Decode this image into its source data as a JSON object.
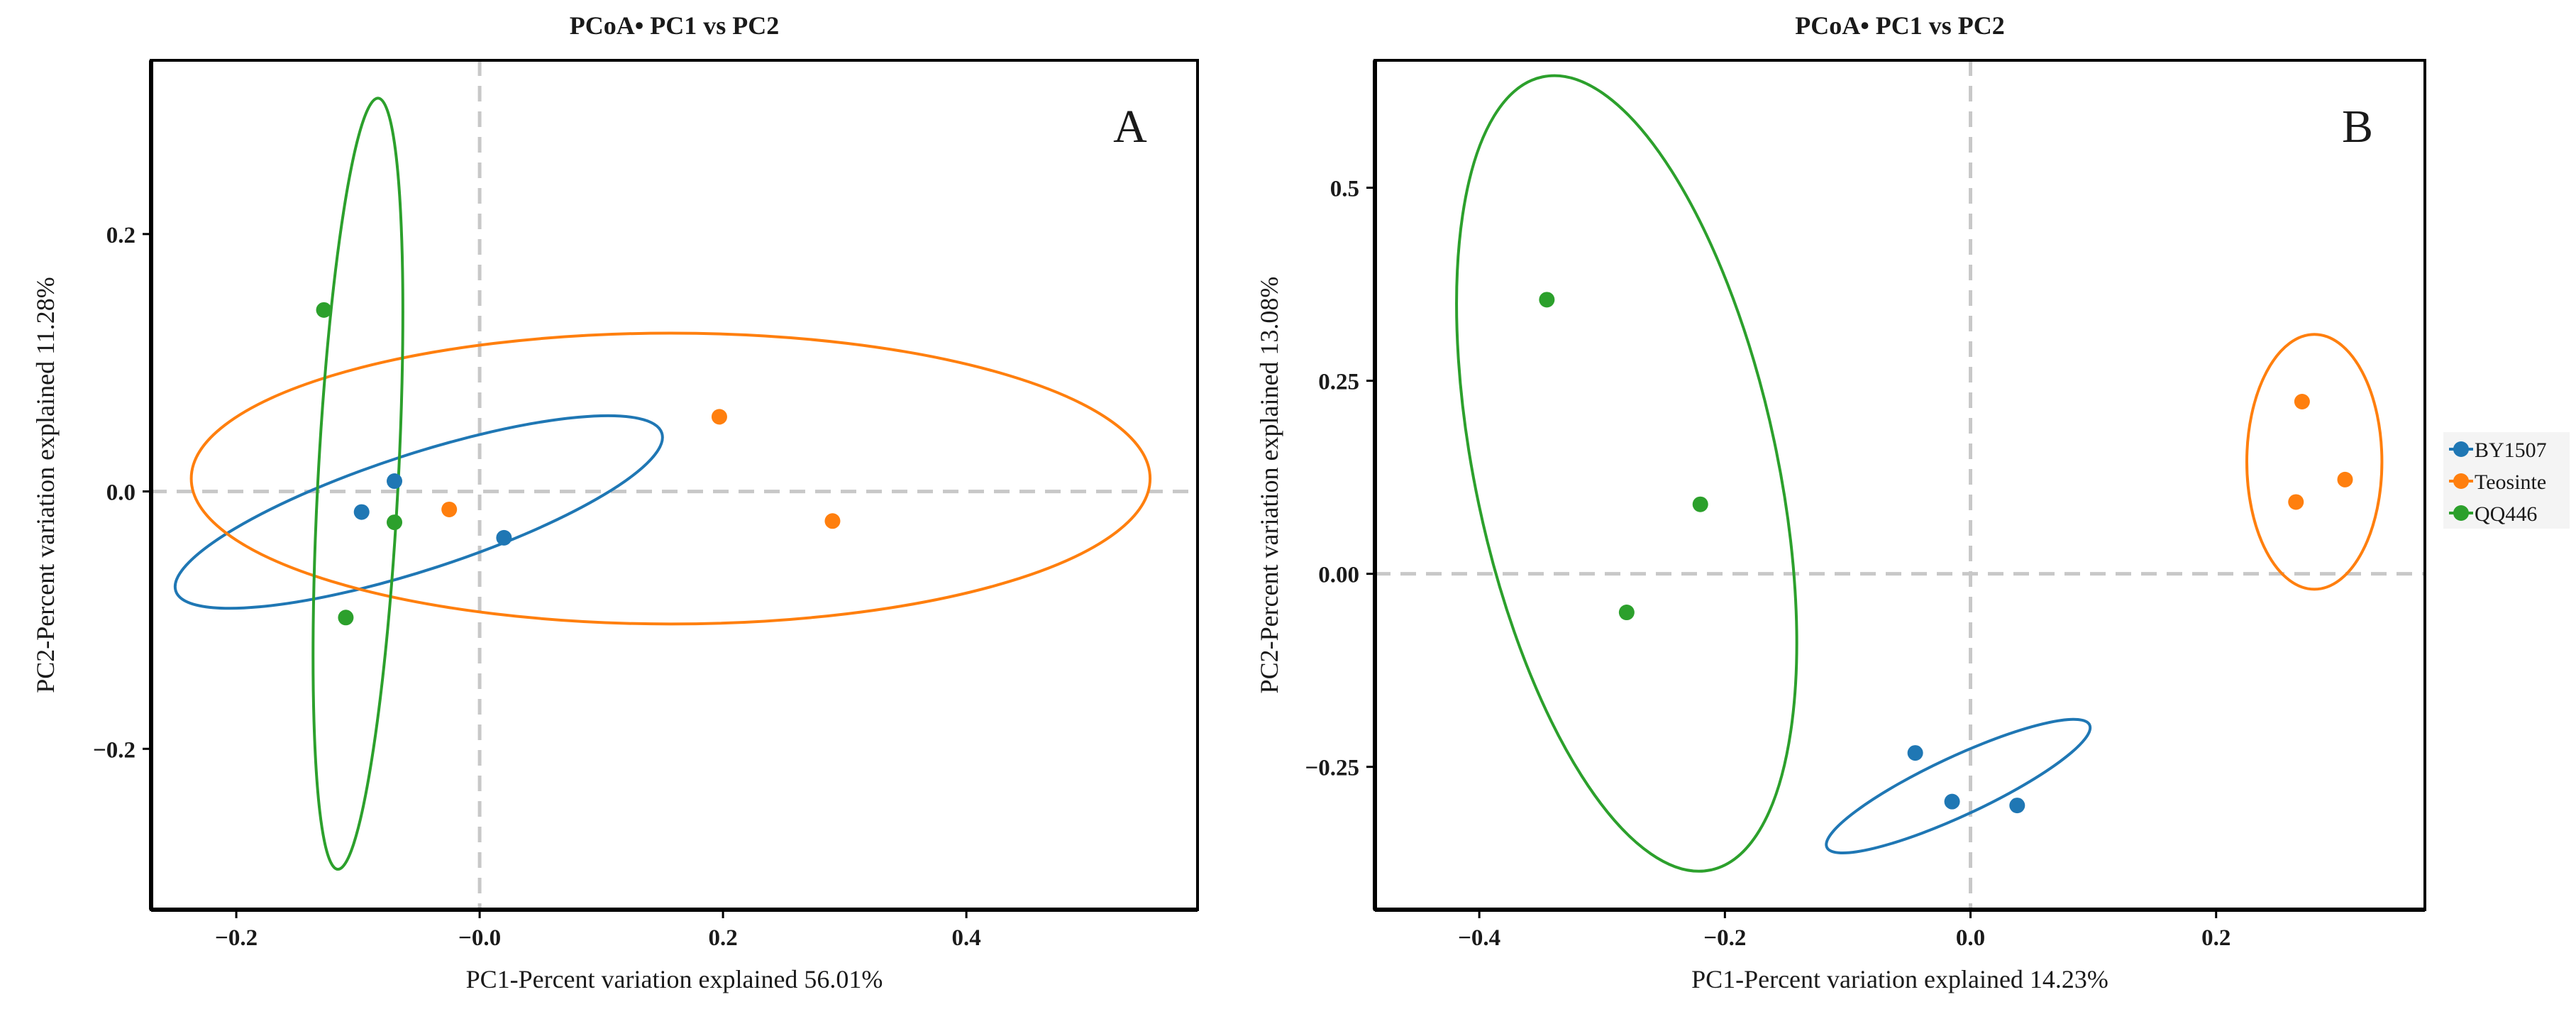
{
  "chart_data": [
    {
      "type": "scatter",
      "title": "PCoA• PC1 vs PC2",
      "panel_label": "A",
      "xlabel": "PC1-Percent variation explained 56.01%",
      "ylabel": "PC2-Percent variation explained 11.28%",
      "xlim": [
        -0.27,
        0.59
      ],
      "ylim": [
        -0.325,
        0.335
      ],
      "xticks": [
        -0.2,
        -0.0,
        0.2,
        0.4
      ],
      "xtick_labels": [
        "−0.2",
        "−0.0",
        "0.2",
        "0.4"
      ],
      "yticks": [
        -0.2,
        0.0,
        0.2
      ],
      "ytick_labels": [
        "−0.2",
        "0.0",
        "0.2"
      ],
      "reference_lines": {
        "x": 0.0,
        "y": 0.0
      },
      "series": [
        {
          "name": "BY1507",
          "color": "#1f77b4",
          "points": [
            [
              -0.07,
              0.008
            ],
            [
              -0.097,
              -0.016
            ],
            [
              0.02,
              -0.036
            ]
          ],
          "ellipse": {
            "cx": -0.05,
            "cy": -0.016,
            "rx": 0.21,
            "ry": 0.045,
            "angle": -18
          }
        },
        {
          "name": "Teosinte",
          "color": "#ff7f0e",
          "points": [
            [
              0.197,
              0.058
            ],
            [
              0.29,
              -0.023
            ],
            [
              -0.025,
              -0.014
            ]
          ],
          "ellipse": {
            "cx": 0.157,
            "cy": 0.01,
            "rx": 0.394,
            "ry": 0.113,
            "angle": 0
          }
        },
        {
          "name": "QQ446",
          "color": "#2ca02c",
          "points": [
            [
              -0.128,
              0.141
            ],
            [
              -0.07,
              -0.024
            ],
            [
              -0.11,
              -0.098
            ]
          ],
          "ellipse": {
            "cx": -0.1,
            "cy": 0.006,
            "rx": 0.033,
            "ry": 0.3,
            "angle": 3
          }
        }
      ]
    },
    {
      "type": "scatter",
      "title": "PCoA• PC1 vs PC2",
      "panel_label": "B",
      "xlabel": "PC1-Percent variation explained 14.23%",
      "ylabel": "PC2-Percent variation explained 13.08%",
      "xlim": [
        -0.485,
        0.37
      ],
      "ylim": [
        -0.435,
        0.665
      ],
      "xticks": [
        -0.4,
        -0.2,
        0.0,
        0.2
      ],
      "xtick_labels": [
        "−0.4",
        "−0.2",
        "0.0",
        "0.2"
      ],
      "yticks": [
        -0.25,
        0.0,
        0.25,
        0.5
      ],
      "ytick_labels": [
        "−0.25",
        "0.00",
        "0.25",
        "0.5"
      ],
      "reference_lines": {
        "x": 0.0,
        "y": 0.0
      },
      "series": [
        {
          "name": "BY1507",
          "color": "#1f77b4",
          "points": [
            [
              -0.045,
              -0.232
            ],
            [
              -0.015,
              -0.295
            ],
            [
              0.038,
              -0.3
            ]
          ],
          "ellipse": {
            "cx": -0.01,
            "cy": -0.275,
            "rx": 0.118,
            "ry": 0.038,
            "angle": -25
          }
        },
        {
          "name": "Teosinte",
          "color": "#ff7f0e",
          "points": [
            [
              0.27,
              0.223
            ],
            [
              0.265,
              0.093
            ],
            [
              0.305,
              0.122
            ]
          ],
          "ellipse": {
            "cx": 0.28,
            "cy": 0.145,
            "rx": 0.055,
            "ry": 0.165,
            "angle": 0
          }
        },
        {
          "name": "QQ446",
          "color": "#2ca02c",
          "points": [
            [
              -0.345,
              0.355
            ],
            [
              -0.22,
              0.09
            ],
            [
              -0.28,
              -0.05
            ]
          ],
          "ellipse": {
            "cx": -0.28,
            "cy": 0.13,
            "rx": 0.123,
            "ry": 0.525,
            "angle": -12
          }
        }
      ]
    }
  ],
  "legend": {
    "placement": "right",
    "items": [
      {
        "label": "BY1507",
        "color": "#1f77b4"
      },
      {
        "label": "Teosinte",
        "color": "#ff7f0e"
      },
      {
        "label": "QQ446",
        "color": "#2ca02c"
      }
    ]
  }
}
